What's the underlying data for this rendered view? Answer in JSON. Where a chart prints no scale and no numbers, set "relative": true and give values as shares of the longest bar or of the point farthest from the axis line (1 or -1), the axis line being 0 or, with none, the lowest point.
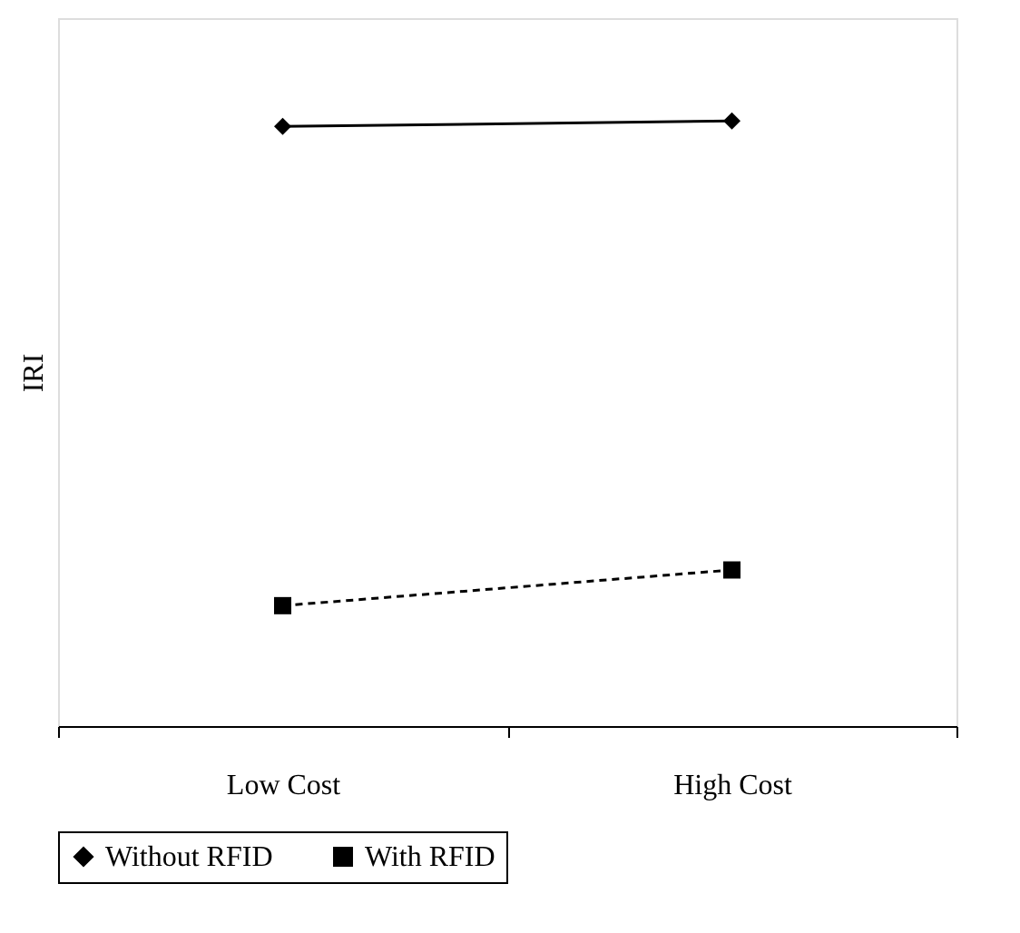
{
  "chart_data": {
    "type": "line",
    "ylabel": "IRI",
    "categories": [
      "Low Cost",
      "High Cost"
    ],
    "relative": true,
    "legend": "bottom",
    "grid": false,
    "series": [
      {
        "name": "Without RFID",
        "color": "#000000",
        "values": [
          0.991,
          1
        ],
        "marker": "diamond",
        "line_style": "solid"
      },
      {
        "name": "With RFID",
        "color": "#000000",
        "values": [
          0.199,
          0.258
        ],
        "marker": "square",
        "line_style": "dashed"
      }
    ]
  }
}
